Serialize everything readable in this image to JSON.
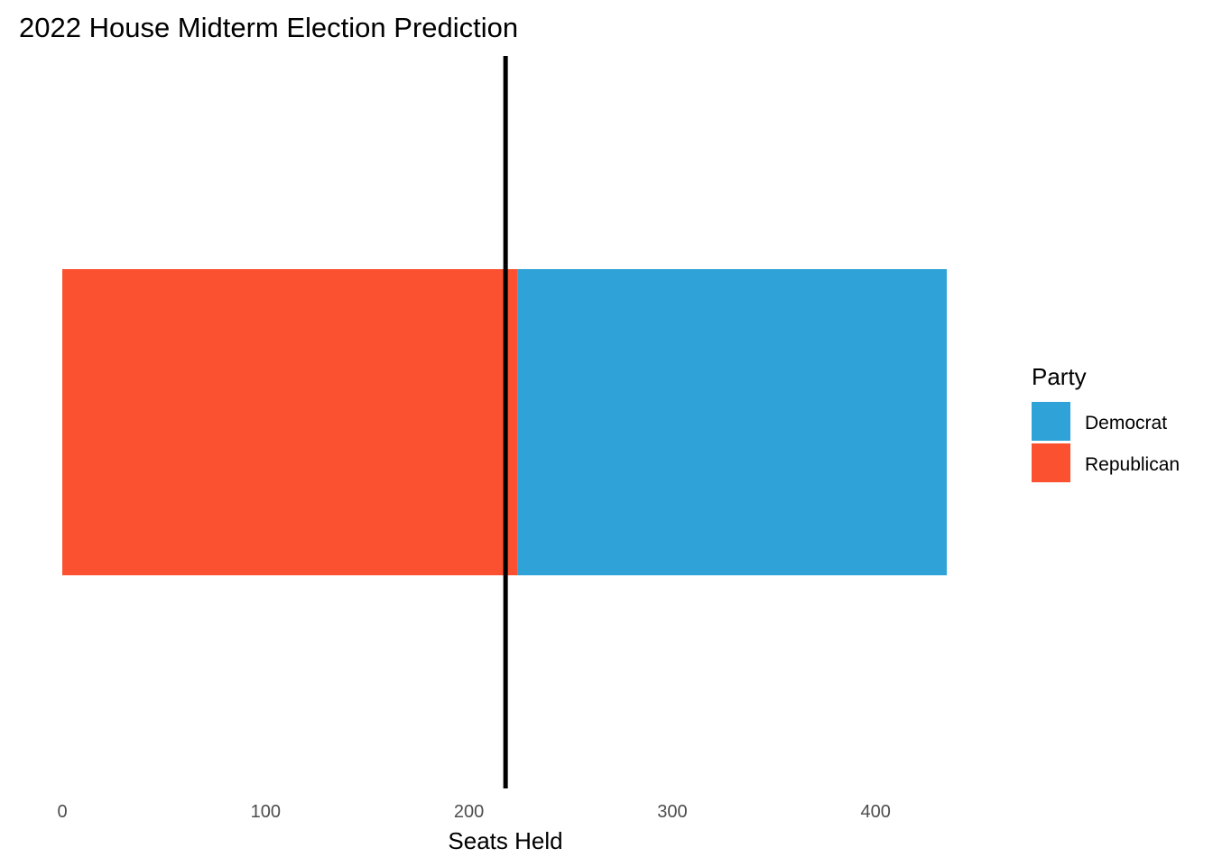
{
  "chart_data": {
    "type": "bar",
    "orientation": "horizontal",
    "stacked": true,
    "title": "2022 House Midterm Election Prediction",
    "xlabel": "Seats Held",
    "ylabel": "",
    "xlim": [
      0,
      435
    ],
    "xticks": [
      0,
      100,
      200,
      300,
      400
    ],
    "grid": false,
    "legend": {
      "title": "Party",
      "position": "right",
      "entries": [
        {
          "label": "Democrat",
          "color": "#2FA2D7"
        },
        {
          "label": "Republican",
          "color": "#FC5130"
        }
      ]
    },
    "series": [
      {
        "name": "Republican",
        "value": 224,
        "color": "#FC5130"
      },
      {
        "name": "Democrat",
        "value": 211,
        "color": "#2FA2D7"
      }
    ],
    "reference_line": {
      "x": 218,
      "color": "#000000"
    }
  }
}
